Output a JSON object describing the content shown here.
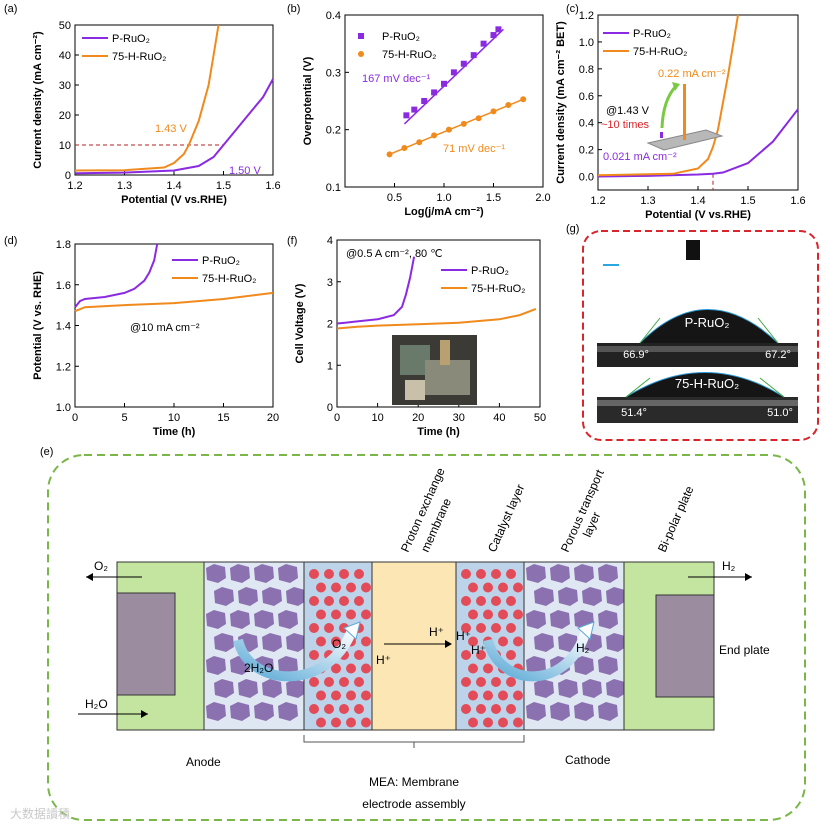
{
  "chart_data": [
    {
      "panel": "(a)",
      "type": "line",
      "xlabel": "Potential (V vs.RHE)",
      "ylabel": "Current density (mA cm⁻²)",
      "xlim": [
        1.2,
        1.6
      ],
      "ylim": [
        0,
        50
      ],
      "xticks": [
        "1.2",
        "1.3",
        "1.4",
        "1.5",
        "1.6"
      ],
      "yticks": [
        "0",
        "10",
        "20",
        "30",
        "40",
        "50"
      ],
      "series": [
        {
          "name": "P-RuO₂",
          "color": "#8a2be2",
          "x": [
            1.2,
            1.3,
            1.4,
            1.45,
            1.48,
            1.5,
            1.52,
            1.55,
            1.58,
            1.6
          ],
          "y": [
            0.6,
            0.8,
            1.5,
            3,
            6,
            10,
            14,
            20,
            26,
            32
          ]
        },
        {
          "name": "75-H-RuO₂",
          "color": "#f08a1c",
          "x": [
            1.2,
            1.3,
            1.38,
            1.4,
            1.42,
            1.43,
            1.45,
            1.47,
            1.48,
            1.49
          ],
          "y": [
            1.5,
            1.6,
            2.5,
            4,
            7,
            10,
            18,
            30,
            40,
            50
          ]
        }
      ],
      "annotations": [
        "1.43 V",
        "1.50 V"
      ],
      "reference_y": 10
    },
    {
      "panel": "(b)",
      "type": "scatter",
      "xlabel": "Log(j/mA cm⁻²)",
      "ylabel": "Overpotential (V)",
      "xlim": [
        0.0,
        2.0
      ],
      "ylim": [
        0.1,
        0.4
      ],
      "xticks": [
        "0.5",
        "1.0",
        "1.5",
        "2.0"
      ],
      "yticks": [
        "0.1",
        "0.2",
        "0.3",
        "0.4"
      ],
      "series": [
        {
          "name": "P-RuO₂",
          "color": "#8a2be2",
          "x": [
            0.62,
            0.7,
            0.8,
            0.9,
            1.0,
            1.1,
            1.2,
            1.3,
            1.4,
            1.5,
            1.55
          ],
          "y": [
            0.225,
            0.235,
            0.25,
            0.265,
            0.28,
            0.3,
            0.315,
            0.33,
            0.35,
            0.365,
            0.375
          ],
          "fit": {
            "x": [
              0.6,
              1.6
            ],
            "y": [
              0.21,
              0.375
            ]
          }
        },
        {
          "name": "75-H-RuO₂",
          "color": "#f08a1c",
          "x": [
            0.45,
            0.6,
            0.75,
            0.9,
            1.05,
            1.2,
            1.35,
            1.5,
            1.65,
            1.8
          ],
          "y": [
            0.157,
            0.168,
            0.178,
            0.19,
            0.2,
            0.21,
            0.22,
            0.232,
            0.243,
            0.253
          ],
          "fit": {
            "x": [
              0.45,
              1.8
            ],
            "y": [
              0.157,
              0.253
            ]
          }
        }
      ],
      "annotations": [
        "167 mV dec⁻¹",
        "71 mV dec⁻¹"
      ]
    },
    {
      "panel": "(c)",
      "type": "line",
      "xlabel": "Potential (V vs.RHE)",
      "ylabel": "Current density (mA cm⁻² BET)",
      "xlim": [
        1.2,
        1.6
      ],
      "ylim": [
        -0.1,
        1.2
      ],
      "xticks": [
        "1.2",
        "1.3",
        "1.4",
        "1.5",
        "1.6"
      ],
      "yticks": [
        "0.0",
        "0.2",
        "0.4",
        "0.6",
        "0.8",
        "1.0",
        "1.2"
      ],
      "series": [
        {
          "name": "P-RuO₂",
          "color": "#8a2be2",
          "x": [
            1.2,
            1.3,
            1.4,
            1.43,
            1.45,
            1.5,
            1.55,
            1.6
          ],
          "y": [
            0.0,
            0.005,
            0.015,
            0.021,
            0.03,
            0.1,
            0.26,
            0.5
          ]
        },
        {
          "name": "75-H-RuO₂",
          "color": "#f08a1c",
          "x": [
            1.2,
            1.35,
            1.4,
            1.42,
            1.43,
            1.44,
            1.46,
            1.48
          ],
          "y": [
            0.01,
            0.02,
            0.06,
            0.13,
            0.22,
            0.35,
            0.75,
            1.2
          ]
        }
      ],
      "annotations": [
        "0.22 mA cm⁻²",
        "@1.43 V",
        "~10 times",
        "0.021 mA cm⁻²"
      ],
      "reference_x": 1.43
    },
    {
      "panel": "(d)",
      "type": "line",
      "xlabel": "Time (h)",
      "ylabel": "Potential (V vs. RHE)",
      "xlim": [
        0,
        20
      ],
      "ylim": [
        1.0,
        1.8
      ],
      "xticks": [
        "0",
        "5",
        "10",
        "15",
        "20"
      ],
      "yticks": [
        "1.0",
        "1.2",
        "1.4",
        "1.6",
        "1.8"
      ],
      "series": [
        {
          "name": "P-RuO₂",
          "color": "#8a2be2",
          "x": [
            0,
            0.5,
            1,
            3,
            5,
            6,
            7,
            7.5,
            8,
            8.3
          ],
          "y": [
            1.49,
            1.52,
            1.53,
            1.54,
            1.56,
            1.58,
            1.62,
            1.66,
            1.72,
            1.8
          ]
        },
        {
          "name": "75-H-RuO₂",
          "color": "#f08a1c",
          "x": [
            0,
            1,
            5,
            10,
            15,
            20
          ],
          "y": [
            1.47,
            1.49,
            1.5,
            1.51,
            1.53,
            1.56
          ]
        }
      ],
      "annotations": [
        "@10 mA cm⁻²"
      ]
    },
    {
      "panel": "(f)",
      "type": "line",
      "xlabel": "Time (h)",
      "ylabel": "Cell Voltage (V)",
      "xlim": [
        0,
        50
      ],
      "ylim": [
        0,
        4
      ],
      "xticks": [
        "0",
        "10",
        "20",
        "30",
        "40",
        "50"
      ],
      "yticks": [
        "0",
        "1",
        "2",
        "3",
        "4"
      ],
      "series": [
        {
          "name": "P-RuO₂",
          "color": "#8a2be2",
          "x": [
            0,
            2,
            5,
            10,
            14,
            16,
            17,
            18,
            19
          ],
          "y": [
            2.0,
            2.02,
            2.05,
            2.1,
            2.2,
            2.4,
            2.7,
            3.1,
            3.6
          ]
        },
        {
          "name": "75-H-RuO₂",
          "color": "#f08a1c",
          "x": [
            0,
            5,
            10,
            20,
            30,
            40,
            45,
            49
          ],
          "y": [
            1.88,
            1.92,
            1.95,
            1.98,
            2.02,
            2.1,
            2.2,
            2.35
          ]
        }
      ],
      "annotations": [
        "@0.5 A cm⁻², 80 ℃"
      ]
    }
  ],
  "panel_labels": {
    "a": "(a)",
    "b": "(b)",
    "c": "(c)",
    "d": "(d)",
    "e": "(e)",
    "f": "(f)",
    "g": "(g)"
  },
  "photo_g": {
    "top_label": "P-RuO₂",
    "bottom_label": "75-H-RuO₂",
    "angles": [
      "66.9°",
      "67.2°",
      "51.4°",
      "51.0°"
    ]
  },
  "diagram": {
    "headers": [
      "Proton exchange",
      "membrane",
      "Catalyst layer",
      "Porous transport",
      "layer",
      "Bi-polar plate"
    ],
    "o2_out": "O₂",
    "h2o_in": "H₂O",
    "h2_out": "H₂",
    "reaction_2h2o": "2H₂O",
    "reaction_o2": "O₂",
    "hplus": "H⁺",
    "h2_cat": "H₂",
    "end_plate": "End plate",
    "anode": "Anode",
    "cathode": "Cathode",
    "mea_line1": "MEA: Membrane",
    "mea_line2": "electrode assembly"
  },
  "watermark": "大数据讀積",
  "colors": {
    "purple": "#8a2be2",
    "orange": "#f08a1c",
    "ptl": "#8c71b0",
    "dash_red": "#d9252b",
    "dash_green": "#7ab648"
  }
}
